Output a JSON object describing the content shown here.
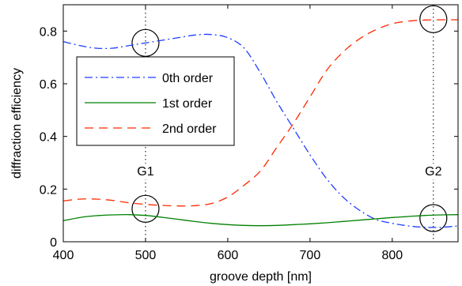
{
  "chart_data": {
    "type": "line",
    "xlabel": "groove depth [nm]",
    "ylabel": "diffraction efficiency",
    "xlim": [
      400,
      880
    ],
    "ylim": [
      0,
      0.9
    ],
    "xticks": [
      400,
      500,
      600,
      700,
      800
    ],
    "yticks": [
      0,
      0.2,
      0.4,
      0.6,
      0.8
    ],
    "xtick_labels": [
      "400",
      "500",
      "600",
      "700",
      "800"
    ],
    "ytick_labels": [
      "0",
      "0.2",
      "0.4",
      "0.6",
      "0.8"
    ],
    "grid": false,
    "legend_position": "upper-left",
    "series": [
      {
        "name": "0th order",
        "color": "#1f3fff",
        "dash": "dash-dot",
        "x": [
          400,
          420,
          440,
          460,
          480,
          500,
          520,
          540,
          560,
          580,
          600,
          620,
          640,
          660,
          680,
          700,
          720,
          740,
          760,
          780,
          800,
          820,
          840,
          860,
          880
        ],
        "y": [
          0.76,
          0.745,
          0.735,
          0.735,
          0.745,
          0.755,
          0.765,
          0.775,
          0.785,
          0.787,
          0.775,
          0.735,
          0.64,
          0.53,
          0.43,
          0.33,
          0.24,
          0.17,
          0.12,
          0.085,
          0.07,
          0.06,
          0.055,
          0.055,
          0.06
        ]
      },
      {
        "name": "1st order",
        "color": "#008000",
        "dash": "solid",
        "x": [
          400,
          420,
          440,
          460,
          480,
          500,
          520,
          540,
          560,
          580,
          600,
          620,
          640,
          660,
          680,
          700,
          720,
          740,
          760,
          780,
          800,
          820,
          840,
          860,
          880
        ],
        "y": [
          0.08,
          0.092,
          0.099,
          0.102,
          0.103,
          0.1,
          0.093,
          0.085,
          0.077,
          0.07,
          0.065,
          0.062,
          0.061,
          0.062,
          0.065,
          0.068,
          0.072,
          0.077,
          0.082,
          0.087,
          0.092,
          0.096,
          0.1,
          0.102,
          0.103
        ]
      },
      {
        "name": "2nd order",
        "color": "#ff2a00",
        "dash": "dashed",
        "x": [
          400,
          420,
          440,
          460,
          480,
          500,
          520,
          540,
          560,
          580,
          600,
          620,
          640,
          660,
          680,
          700,
          720,
          740,
          760,
          780,
          800,
          820,
          840,
          860,
          880
        ],
        "y": [
          0.155,
          0.162,
          0.162,
          0.157,
          0.148,
          0.142,
          0.138,
          0.136,
          0.137,
          0.145,
          0.17,
          0.215,
          0.27,
          0.36,
          0.45,
          0.55,
          0.65,
          0.72,
          0.77,
          0.805,
          0.828,
          0.838,
          0.842,
          0.843,
          0.843
        ]
      }
    ],
    "annotations": [
      {
        "label": "G1",
        "x": 500,
        "label_y": 0.3,
        "circles_y": [
          0.755,
          0.125
        ]
      },
      {
        "label": "G2",
        "x": 850,
        "label_y": 0.3,
        "circles_y": [
          0.845,
          0.09
        ]
      }
    ]
  }
}
